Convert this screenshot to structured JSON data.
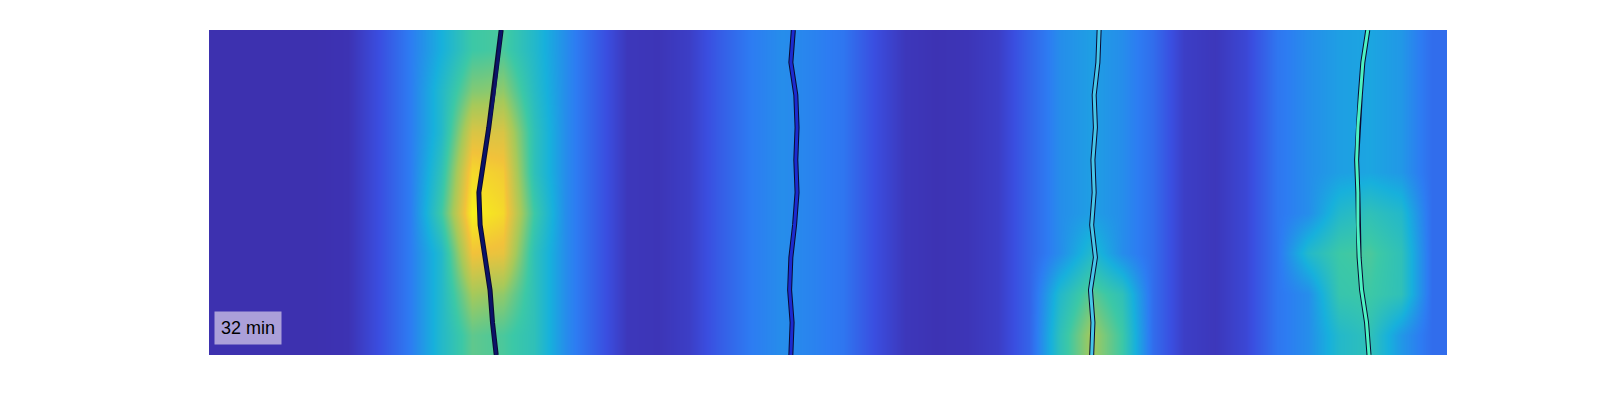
{
  "chart_data": {
    "type": "heatmap",
    "annotation": "32 min",
    "xlim": [
      0,
      100
    ],
    "ylim": [
      0,
      100
    ],
    "tick_labels": false,
    "heatmap": {
      "x": [
        1.25,
        3.75,
        6.25,
        8.75,
        11.25,
        13.75,
        16.25,
        18.75,
        21.25,
        23.75,
        26.25,
        28.75,
        31.25,
        33.75,
        36.25,
        38.75,
        41.25,
        43.75,
        46.25,
        48.75,
        51.25,
        53.75,
        56.25,
        58.75,
        61.25,
        63.75,
        66.25,
        68.75,
        71.25,
        73.75,
        76.25,
        78.75,
        81.25,
        83.75,
        86.25,
        88.75,
        91.25,
        93.75,
        96.25,
        98.75
      ],
      "y": [
        6.25,
        18.75,
        31.25,
        43.75,
        56.25,
        68.75,
        81.25,
        93.75
      ],
      "z": [
        [
          0.02,
          0.02,
          0.02,
          0.02,
          0.03,
          0.15,
          0.3,
          0.5,
          0.65,
          0.62,
          0.55,
          0.35,
          0.2,
          0.05,
          0.04,
          0.08,
          0.2,
          0.3,
          0.35,
          0.32,
          0.28,
          0.15,
          0.05,
          0.03,
          0.04,
          0.08,
          0.22,
          0.55,
          0.75,
          0.6,
          0.25,
          0.08,
          0.05,
          0.12,
          0.28,
          0.35,
          0.5,
          0.55,
          0.38,
          0.25
        ],
        [
          0.02,
          0.02,
          0.02,
          0.02,
          0.03,
          0.15,
          0.3,
          0.5,
          0.75,
          0.72,
          0.55,
          0.35,
          0.2,
          0.05,
          0.04,
          0.08,
          0.2,
          0.3,
          0.35,
          0.32,
          0.28,
          0.15,
          0.05,
          0.03,
          0.04,
          0.08,
          0.22,
          0.5,
          0.65,
          0.55,
          0.25,
          0.08,
          0.05,
          0.12,
          0.28,
          0.35,
          0.58,
          0.6,
          0.55,
          0.25
        ],
        [
          0.02,
          0.02,
          0.02,
          0.02,
          0.03,
          0.15,
          0.3,
          0.5,
          0.9,
          0.88,
          0.55,
          0.35,
          0.2,
          0.05,
          0.04,
          0.08,
          0.2,
          0.3,
          0.35,
          0.32,
          0.28,
          0.15,
          0.05,
          0.03,
          0.04,
          0.08,
          0.22,
          0.35,
          0.5,
          0.35,
          0.25,
          0.08,
          0.05,
          0.12,
          0.28,
          0.5,
          0.6,
          0.62,
          0.55,
          0.25
        ],
        [
          0.02,
          0.02,
          0.02,
          0.02,
          0.03,
          0.15,
          0.3,
          0.6,
          1.0,
          0.95,
          0.6,
          0.35,
          0.2,
          0.05,
          0.04,
          0.08,
          0.2,
          0.3,
          0.35,
          0.32,
          0.28,
          0.15,
          0.05,
          0.03,
          0.04,
          0.08,
          0.22,
          0.35,
          0.4,
          0.35,
          0.25,
          0.08,
          0.05,
          0.12,
          0.28,
          0.35,
          0.5,
          0.55,
          0.5,
          0.25
        ],
        [
          0.02,
          0.02,
          0.02,
          0.02,
          0.03,
          0.15,
          0.3,
          0.55,
          0.95,
          0.92,
          0.55,
          0.35,
          0.2,
          0.05,
          0.04,
          0.08,
          0.2,
          0.3,
          0.35,
          0.32,
          0.28,
          0.15,
          0.05,
          0.03,
          0.04,
          0.08,
          0.22,
          0.35,
          0.4,
          0.35,
          0.25,
          0.08,
          0.05,
          0.12,
          0.28,
          0.35,
          0.4,
          0.42,
          0.38,
          0.25
        ],
        [
          0.02,
          0.02,
          0.02,
          0.02,
          0.03,
          0.15,
          0.3,
          0.5,
          0.85,
          0.85,
          0.55,
          0.35,
          0.2,
          0.05,
          0.04,
          0.08,
          0.2,
          0.3,
          0.35,
          0.32,
          0.28,
          0.15,
          0.05,
          0.03,
          0.04,
          0.08,
          0.22,
          0.35,
          0.4,
          0.35,
          0.25,
          0.08,
          0.05,
          0.12,
          0.28,
          0.35,
          0.4,
          0.42,
          0.38,
          0.25
        ],
        [
          0.02,
          0.02,
          0.02,
          0.02,
          0.03,
          0.15,
          0.3,
          0.5,
          0.7,
          0.72,
          0.52,
          0.35,
          0.2,
          0.05,
          0.04,
          0.08,
          0.2,
          0.3,
          0.35,
          0.32,
          0.28,
          0.15,
          0.05,
          0.03,
          0.04,
          0.08,
          0.22,
          0.35,
          0.4,
          0.35,
          0.25,
          0.08,
          0.05,
          0.12,
          0.28,
          0.35,
          0.4,
          0.42,
          0.38,
          0.25
        ],
        [
          0.02,
          0.02,
          0.02,
          0.02,
          0.03,
          0.15,
          0.3,
          0.45,
          0.6,
          0.62,
          0.5,
          0.35,
          0.2,
          0.05,
          0.04,
          0.08,
          0.2,
          0.3,
          0.35,
          0.32,
          0.28,
          0.15,
          0.05,
          0.03,
          0.04,
          0.08,
          0.22,
          0.35,
          0.4,
          0.35,
          0.25,
          0.08,
          0.05,
          0.12,
          0.28,
          0.35,
          0.4,
          0.42,
          0.38,
          0.25
        ]
      ],
      "zlim": [
        0,
        1
      ]
    },
    "series": [
      {
        "color": "#0b1268",
        "y": [
          100,
          90,
          80,
          70,
          60,
          50,
          40,
          30,
          20,
          10,
          0
        ],
        "x": [
          23.6,
          23.3,
          23.0,
          22.6,
          22.2,
          21.8,
          21.9,
          22.3,
          22.7,
          22.9,
          23.2
        ]
      },
      {
        "color": "#1b2ad0",
        "y": [
          100,
          90,
          80,
          70,
          60,
          50,
          40,
          30,
          20,
          10,
          0
        ],
        "x": [
          47.2,
          47.0,
          47.4,
          47.5,
          47.4,
          47.5,
          47.3,
          47.0,
          46.9,
          47.1,
          47.0
        ]
      },
      {
        "color": "#47c6e8",
        "y": [
          100,
          90,
          80,
          70,
          60,
          50,
          40,
          30,
          20,
          10,
          0
        ],
        "x": [
          71.9,
          71.8,
          71.5,
          71.6,
          71.4,
          71.5,
          71.3,
          71.6,
          71.2,
          71.4,
          71.3
        ]
      },
      {
        "color": "#4df2c2",
        "y": [
          100,
          90,
          80,
          70,
          60,
          50,
          40,
          30,
          20,
          10,
          0
        ],
        "x": [
          93.6,
          93.2,
          93.0,
          92.8,
          92.7,
          92.8,
          92.8,
          92.9,
          93.1,
          93.5,
          93.7
        ]
      }
    ]
  }
}
